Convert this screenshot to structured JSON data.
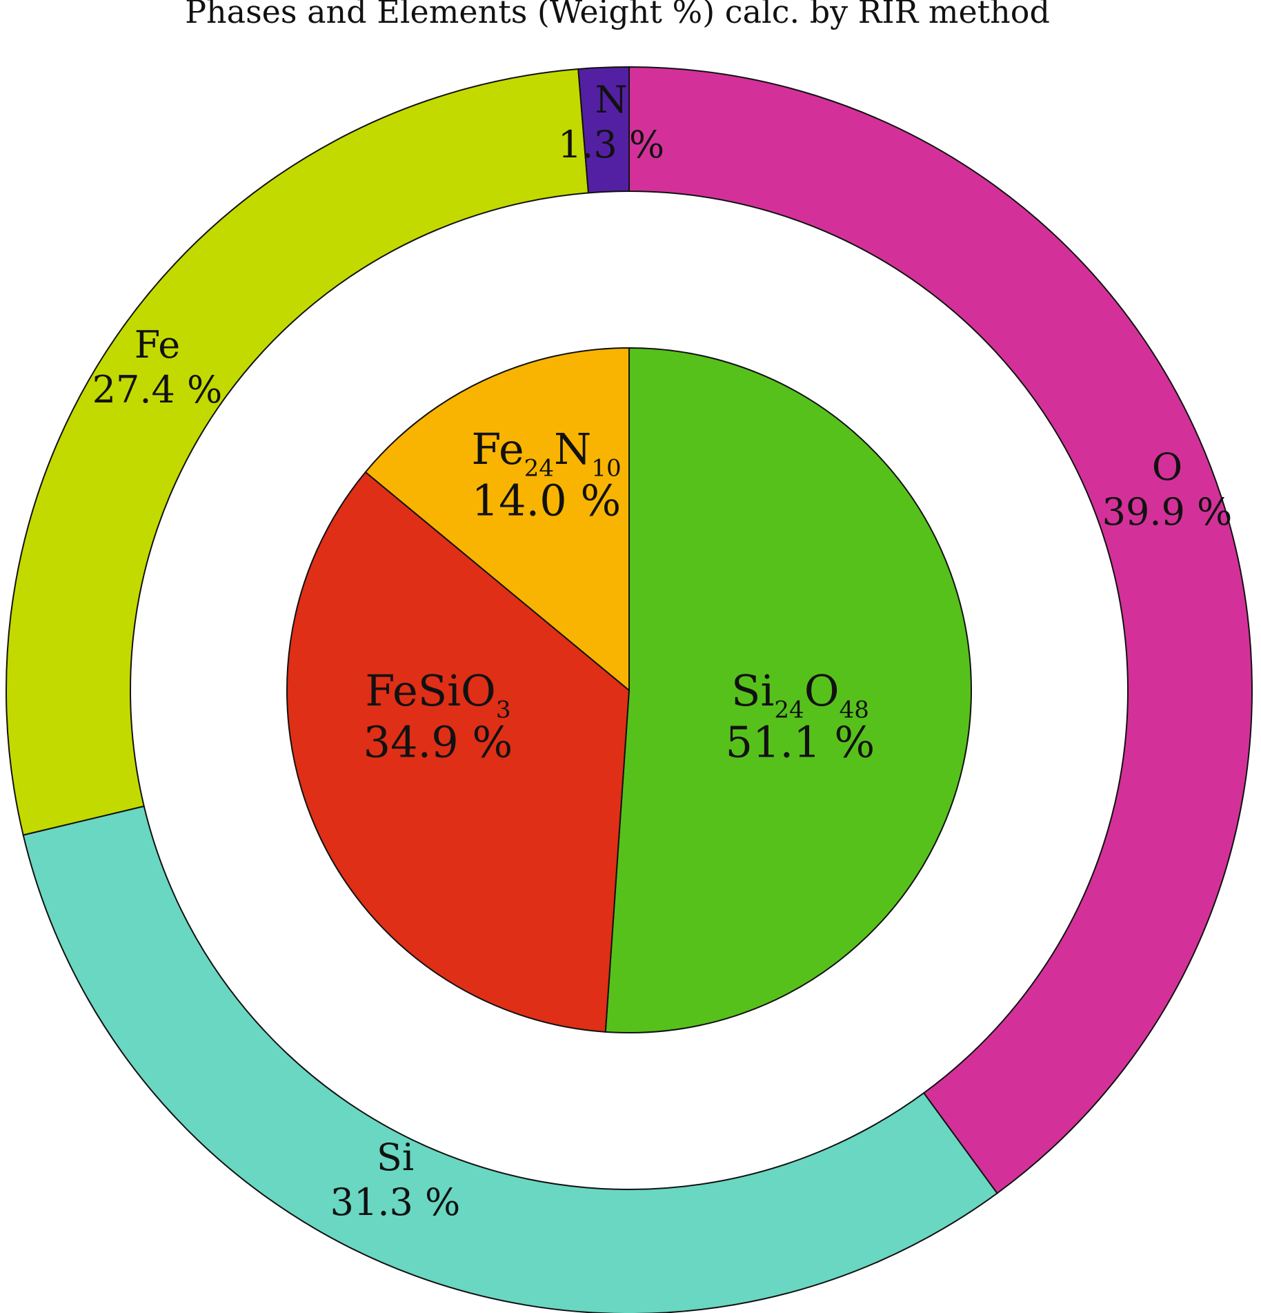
{
  "chart_data": [
    {
      "type": "pie",
      "title": "Phases and Elements (Weight %) calc. by RIR method",
      "ring": "outer",
      "unit": "%",
      "slices": [
        {
          "label": "O",
          "value": 39.9,
          "value_label": "39.9 %",
          "color": "#d33199"
        },
        {
          "label": "Si",
          "value": 31.3,
          "value_label": "31.3 %",
          "color": "#69d7c1"
        },
        {
          "label": "Fe",
          "value": 27.4,
          "value_label": "27.4 %",
          "color": "#c3da00"
        },
        {
          "label": "N",
          "value": 1.3,
          "value_label": "1.3 %",
          "color": "#5420a3"
        }
      ]
    },
    {
      "type": "pie",
      "ring": "inner",
      "unit": "%",
      "slices": [
        {
          "label": "Si24O48",
          "formula": [
            [
              "Si",
              "24"
            ],
            [
              "O",
              "48"
            ]
          ],
          "value": 51.1,
          "value_label": "51.1 %",
          "color": "#57c11b"
        },
        {
          "label": "FeSiO3",
          "formula": [
            [
              "FeSiO",
              "3"
            ]
          ],
          "value": 34.9,
          "value_label": "34.9 %",
          "color": "#df2f16"
        },
        {
          "label": "Fe24N10",
          "formula": [
            [
              "Fe",
              "24"
            ],
            [
              "N",
              "10"
            ]
          ],
          "value": 14.0,
          "value_label": "14.0 %",
          "color": "#f8b400"
        }
      ]
    }
  ]
}
